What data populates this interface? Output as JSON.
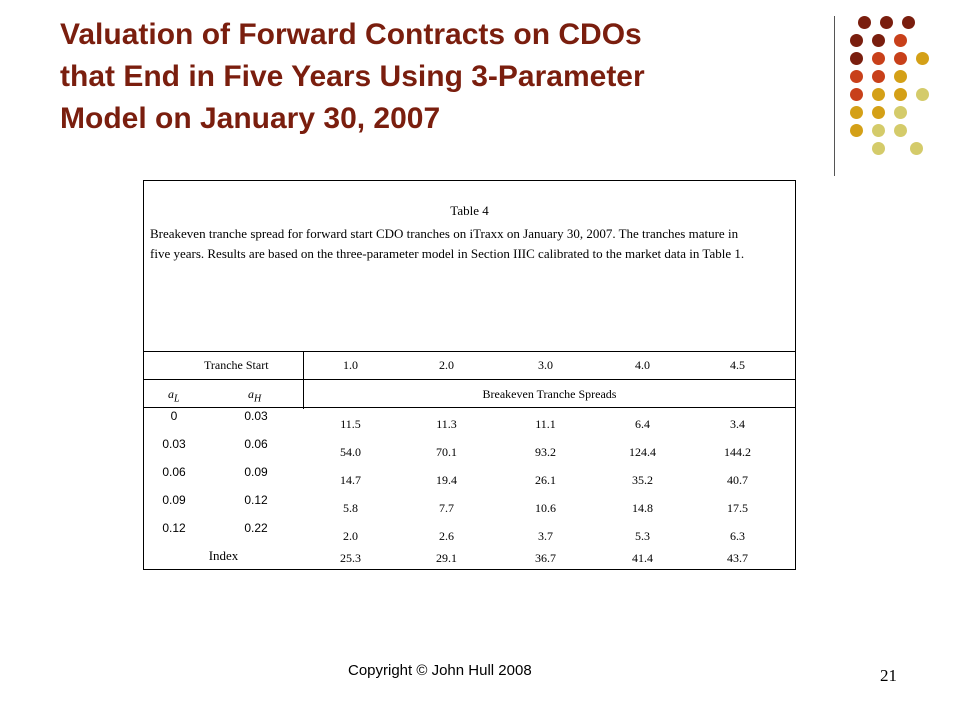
{
  "slide": {
    "title_lines": [
      "Valuation of Forward Contracts on CDOs",
      "that End in Five Years Using 3-Parameter",
      "Model on January 30, 2007"
    ],
    "footer": "Copyright © John Hull  2008",
    "page_number": "21",
    "dot_colors": {
      "dark_red": "#7a1e0e",
      "orange_red": "#c8401a",
      "gold": "#d4a017",
      "pale_olive": "#d4cb6a"
    }
  },
  "table": {
    "caption": "Table 4",
    "description": "Breakeven tranche spread for forward start CDO tranches on iTraxx on January 30, 2007. The tranches mature in five years. Results are based on the three-parameter model in Section IIIC calibrated to the market data in Table 1.",
    "tranche_start_label": "Tranche Start",
    "tranche_starts": [
      "1.0",
      "2.0",
      "3.0",
      "4.0",
      "4.5"
    ],
    "aL_label": "a",
    "aL_sub": "L",
    "aH_label": "a",
    "aH_sub": "H",
    "spreads_header": "Breakeven Tranche Spreads",
    "rows": [
      {
        "aL": "0",
        "aH": "0.03",
        "values": [
          "11.5",
          "11.3",
          "11.1",
          "6.4",
          "3.4"
        ]
      },
      {
        "aL": "0.03",
        "aH": "0.06",
        "values": [
          "54.0",
          "70.1",
          "93.2",
          "124.4",
          "144.2"
        ]
      },
      {
        "aL": "0.06",
        "aH": "0.09",
        "values": [
          "14.7",
          "19.4",
          "26.1",
          "35.2",
          "40.7"
        ]
      },
      {
        "aL": "0.09",
        "aH": "0.12",
        "values": [
          "5.8",
          "7.7",
          "10.6",
          "14.8",
          "17.5"
        ]
      },
      {
        "aL": "0.12",
        "aH": "0.22",
        "values": [
          "2.0",
          "2.6",
          "3.7",
          "5.3",
          "6.3"
        ]
      }
    ],
    "index_row": {
      "label": "Index",
      "values": [
        "25.3",
        "29.1",
        "36.7",
        "41.4",
        "43.7"
      ]
    }
  }
}
